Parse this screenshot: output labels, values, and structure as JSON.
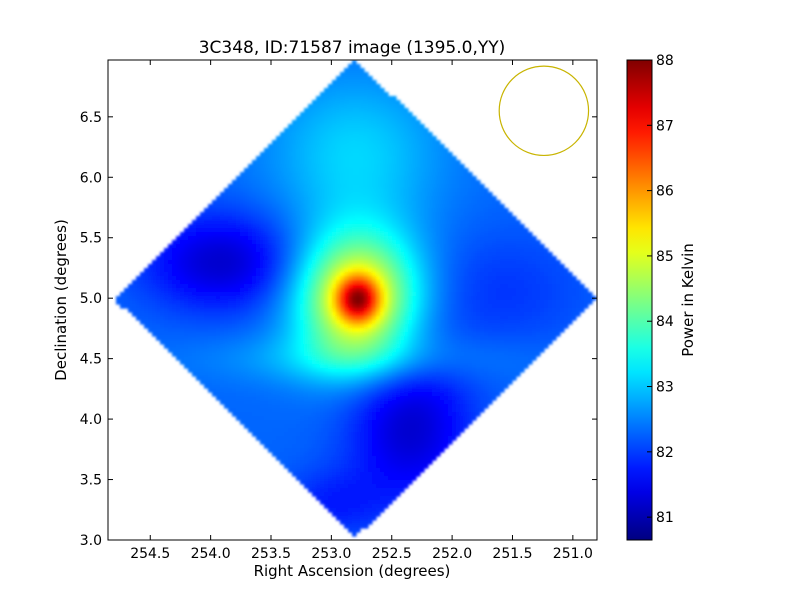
{
  "chart_data": {
    "type": "heatmap",
    "title": "3C348, ID:71587 image (1395.0,YY)",
    "xlabel": "Right Ascension (degrees)",
    "ylabel": "Declination (degrees)",
    "colorbar_label": "Power in Kelvin",
    "xlim": [
      254.85,
      250.8
    ],
    "ylim": [
      3.0,
      6.97
    ],
    "x_ticks": [
      254.5,
      254.0,
      253.5,
      253.0,
      252.5,
      252.0,
      251.5,
      251.0
    ],
    "x_tick_labels": [
      "254.5",
      "254.0",
      "253.5",
      "253.0",
      "252.5",
      "252.0",
      "251.5",
      "251.0"
    ],
    "y_ticks": [
      3.0,
      3.5,
      4.0,
      4.5,
      5.0,
      5.5,
      6.0,
      6.5
    ],
    "y_tick_labels": [
      "3.0",
      "3.5",
      "4.0",
      "4.5",
      "5.0",
      "5.5",
      "6.0",
      "6.5"
    ],
    "colorbar_range": [
      80.65,
      88.0
    ],
    "colorbar_ticks": [
      81,
      82,
      83,
      84,
      85,
      86,
      87,
      88
    ],
    "colorbar_tick_labels": [
      "81",
      "82",
      "83",
      "84",
      "85",
      "86",
      "87",
      "88"
    ],
    "colormap": "jet",
    "background_level": 82.3,
    "peak": {
      "ra": 252.78,
      "dec": 4.98,
      "value": 88.0
    },
    "mapped_region": {
      "shape": "diamond",
      "center": {
        "ra": 252.8,
        "dec": 5.0
      },
      "half_width_ra": 2.0,
      "half_height_dec": 1.97
    },
    "features": [
      {
        "ra": 252.78,
        "dec": 5.0,
        "sx": 0.35,
        "sy": 0.38,
        "amplitude": 3.2
      },
      {
        "ra": 252.78,
        "dec": 4.99,
        "sx": 0.12,
        "sy": 0.13,
        "amplitude": 2.6
      },
      {
        "ra": 252.8,
        "dec": 6.2,
        "sx": 0.5,
        "sy": 0.45,
        "amplitude": 0.8
      },
      {
        "ra": 252.8,
        "dec": 4.5,
        "sx": 0.8,
        "sy": 0.15,
        "amplitude": 0.55
      },
      {
        "ra": 253.9,
        "dec": 5.3,
        "sx": 0.45,
        "sy": 0.28,
        "amplitude": -1.1
      },
      {
        "ra": 252.35,
        "dec": 3.95,
        "sx": 0.35,
        "sy": 0.45,
        "amplitude": -1.1
      },
      {
        "ra": 253.0,
        "dec": 3.3,
        "sx": 0.3,
        "sy": 0.2,
        "amplitude": -0.5
      },
      {
        "ra": 251.6,
        "dec": 5.05,
        "sx": 0.5,
        "sy": 0.35,
        "amplitude": -0.35
      }
    ],
    "beam_circle": {
      "ra": 251.24,
      "dec": 6.55,
      "radius_deg": 0.37,
      "color": "#c8b400"
    },
    "grid": false,
    "legend": "none"
  }
}
